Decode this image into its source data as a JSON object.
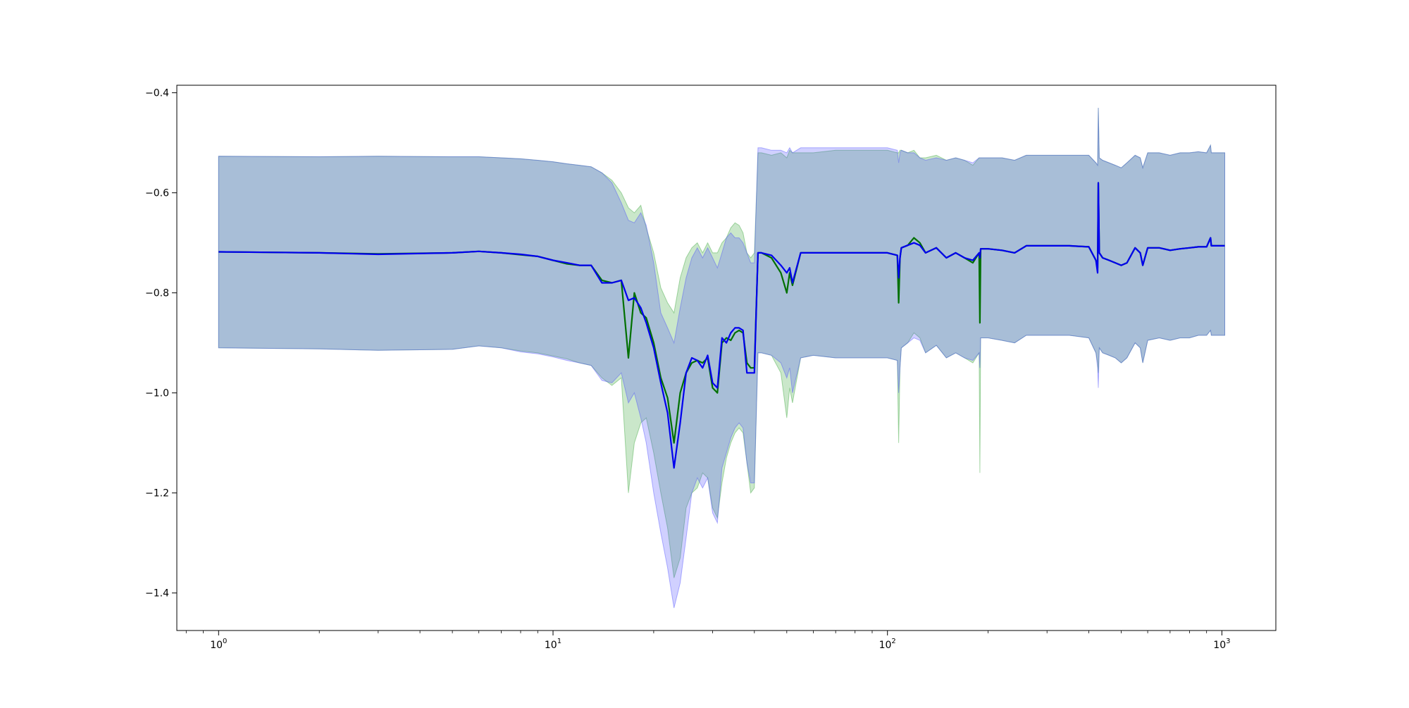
{
  "chart_data": {
    "type": "line",
    "title": "",
    "xlabel": "",
    "ylabel": "",
    "xscale": "log",
    "xlim": [
      0.75,
      1450
    ],
    "ylim": [
      -1.475,
      -0.385
    ],
    "grid": false,
    "legend": "none",
    "x_ticks": [
      {
        "value": 1,
        "base": "10",
        "exp": "0"
      },
      {
        "value": 10,
        "base": "10",
        "exp": "1"
      },
      {
        "value": 100,
        "base": "10",
        "exp": "2"
      },
      {
        "value": 1000,
        "base": "10",
        "exp": "3"
      }
    ],
    "y_ticks": [
      {
        "value": -0.4,
        "label": "−0.4"
      },
      {
        "value": -0.6,
        "label": "−0.6"
      },
      {
        "value": -0.8,
        "label": "−0.8"
      },
      {
        "value": -1.0,
        "label": "−1.0"
      },
      {
        "value": -1.2,
        "label": "−1.2"
      },
      {
        "value": -1.4,
        "label": "−1.4"
      }
    ],
    "series": [
      {
        "color": "#007000",
        "band_color": "#2ca02c",
        "band_opacity": 0.25,
        "x": [
          1,
          2,
          3,
          5,
          6,
          7,
          8,
          9,
          10,
          11,
          12,
          13,
          14,
          15,
          16,
          16.8,
          17.5,
          18.3,
          19,
          20,
          21,
          22,
          23,
          24,
          25,
          26,
          27,
          28,
          29,
          30,
          31,
          32,
          33,
          34,
          35,
          36,
          37,
          38,
          39,
          40,
          41,
          42,
          45,
          48,
          50,
          51,
          52,
          55,
          60,
          70,
          80,
          90,
          100,
          107,
          108,
          109,
          110,
          115,
          120,
          125,
          130,
          140,
          150,
          160,
          170,
          180,
          188,
          189,
          190,
          195,
          200,
          220,
          240,
          260,
          300,
          350,
          400,
          420,
          425,
          427,
          430,
          440,
          460,
          480,
          500,
          520,
          550,
          570,
          580,
          600,
          650,
          700,
          750,
          800,
          850,
          900,
          925,
          930,
          950,
          1000,
          1020
        ],
        "y": [
          -0.718,
          -0.72,
          -0.722,
          -0.72,
          -0.717,
          -0.72,
          -0.724,
          -0.727,
          -0.735,
          -0.742,
          -0.745,
          -0.745,
          -0.775,
          -0.78,
          -0.775,
          -0.93,
          -0.8,
          -0.84,
          -0.85,
          -0.9,
          -0.97,
          -1.01,
          -1.1,
          -1.0,
          -0.96,
          -0.94,
          -0.935,
          -0.94,
          -0.93,
          -0.99,
          -1.0,
          -0.9,
          -0.89,
          -0.895,
          -0.88,
          -0.875,
          -0.88,
          -0.94,
          -0.95,
          -0.95,
          -0.72,
          -0.72,
          -0.73,
          -0.76,
          -0.8,
          -0.76,
          -0.785,
          -0.72,
          -0.72,
          -0.72,
          -0.72,
          -0.72,
          -0.72,
          -0.725,
          -0.82,
          -0.73,
          -0.71,
          -0.705,
          -0.69,
          -0.7,
          -0.72,
          -0.71,
          -0.73,
          -0.72,
          -0.73,
          -0.74,
          -0.72,
          -0.86,
          -0.712,
          -0.712,
          -0.712,
          -0.715,
          -0.72,
          -0.706,
          -0.706,
          -0.706,
          -0.708,
          -0.735,
          -0.75,
          -0.58,
          -0.72,
          -0.73,
          -0.735,
          -0.74,
          -0.745,
          -0.74,
          -0.71,
          -0.72,
          -0.745,
          -0.71,
          -0.71,
          -0.715,
          -0.712,
          -0.71,
          -0.708,
          -0.708,
          -0.69,
          -0.706,
          -0.706,
          -0.706,
          -0.706
        ],
        "upper": [
          -0.527,
          -0.528,
          -0.527,
          -0.528,
          -0.528,
          -0.53,
          -0.532,
          -0.535,
          -0.538,
          -0.542,
          -0.545,
          -0.548,
          -0.56,
          -0.575,
          -0.6,
          -0.63,
          -0.64,
          -0.625,
          -0.67,
          -0.72,
          -0.79,
          -0.82,
          -0.84,
          -0.77,
          -0.73,
          -0.71,
          -0.7,
          -0.72,
          -0.7,
          -0.72,
          -0.72,
          -0.7,
          -0.69,
          -0.67,
          -0.66,
          -0.665,
          -0.68,
          -0.72,
          -0.73,
          -0.72,
          -0.52,
          -0.52,
          -0.525,
          -0.52,
          -0.53,
          -0.515,
          -0.52,
          -0.52,
          -0.52,
          -0.515,
          -0.515,
          -0.515,
          -0.515,
          -0.52,
          -0.52,
          -0.515,
          -0.515,
          -0.52,
          -0.515,
          -0.53,
          -0.53,
          -0.525,
          -0.535,
          -0.53,
          -0.535,
          -0.545,
          -0.53,
          -0.53,
          -0.53,
          -0.53,
          -0.53,
          -0.53,
          -0.535,
          -0.525,
          -0.525,
          -0.525,
          -0.525,
          -0.54,
          -0.545,
          -0.43,
          -0.53,
          -0.535,
          -0.54,
          -0.545,
          -0.55,
          -0.54,
          -0.525,
          -0.53,
          -0.55,
          -0.52,
          -0.52,
          -0.525,
          -0.52,
          -0.52,
          -0.518,
          -0.52,
          -0.505,
          -0.52,
          -0.52,
          -0.52,
          -0.52
        ],
        "lower": [
          -0.91,
          -0.912,
          -0.915,
          -0.913,
          -0.906,
          -0.91,
          -0.916,
          -0.92,
          -0.926,
          -0.932,
          -0.94,
          -0.945,
          -0.97,
          -0.985,
          -0.97,
          -1.2,
          -1.1,
          -1.06,
          -1.05,
          -1.12,
          -1.2,
          -1.27,
          -1.37,
          -1.33,
          -1.23,
          -1.2,
          -1.19,
          -1.16,
          -1.17,
          -1.23,
          -1.25,
          -1.18,
          -1.13,
          -1.1,
          -1.08,
          -1.07,
          -1.08,
          -1.14,
          -1.2,
          -1.19,
          -0.92,
          -0.92,
          -0.925,
          -0.96,
          -1.05,
          -0.99,
          -1.02,
          -0.93,
          -0.925,
          -0.93,
          -0.93,
          -0.93,
          -0.93,
          -0.935,
          -1.1,
          -0.95,
          -0.91,
          -0.9,
          -0.88,
          -0.89,
          -0.92,
          -0.905,
          -0.93,
          -0.92,
          -0.93,
          -0.94,
          -0.92,
          -1.16,
          -0.89,
          -0.89,
          -0.89,
          -0.895,
          -0.9,
          -0.885,
          -0.885,
          -0.885,
          -0.89,
          -0.92,
          -0.94,
          -0.96,
          -0.91,
          -0.92,
          -0.925,
          -0.93,
          -0.94,
          -0.93,
          -0.9,
          -0.91,
          -0.94,
          -0.895,
          -0.89,
          -0.895,
          -0.89,
          -0.89,
          -0.885,
          -0.885,
          -0.875,
          -0.885,
          -0.885,
          -0.885,
          -0.885
        ]
      },
      {
        "color": "#0000ee",
        "band_color": "#4444ff",
        "band_opacity": 0.25,
        "x": [
          1,
          2,
          3,
          5,
          6,
          7,
          8,
          9,
          10,
          11,
          12,
          13,
          14,
          15,
          16,
          16.8,
          17.5,
          18.3,
          19,
          20,
          21,
          22,
          23,
          24,
          25,
          26,
          27,
          28,
          29,
          30,
          31,
          32,
          33,
          34,
          35,
          36,
          37,
          38,
          39,
          40,
          41,
          42,
          45,
          48,
          50,
          51,
          52,
          55,
          60,
          70,
          80,
          90,
          100,
          107,
          108,
          109,
          110,
          115,
          120,
          125,
          130,
          140,
          150,
          160,
          170,
          180,
          188,
          189,
          190,
          195,
          200,
          220,
          240,
          260,
          300,
          350,
          400,
          420,
          425,
          427,
          430,
          440,
          460,
          480,
          500,
          520,
          550,
          570,
          580,
          600,
          650,
          700,
          750,
          800,
          850,
          900,
          925,
          930,
          950,
          1000,
          1020
        ],
        "y": [
          -0.718,
          -0.72,
          -0.723,
          -0.72,
          -0.717,
          -0.72,
          -0.723,
          -0.727,
          -0.735,
          -0.74,
          -0.745,
          -0.745,
          -0.78,
          -0.78,
          -0.775,
          -0.815,
          -0.81,
          -0.83,
          -0.86,
          -0.91,
          -0.98,
          -1.04,
          -1.15,
          -1.06,
          -0.96,
          -0.93,
          -0.935,
          -0.95,
          -0.925,
          -0.98,
          -0.99,
          -0.89,
          -0.9,
          -0.88,
          -0.87,
          -0.87,
          -0.875,
          -0.96,
          -0.96,
          -0.96,
          -0.72,
          -0.72,
          -0.725,
          -0.745,
          -0.76,
          -0.75,
          -0.78,
          -0.72,
          -0.72,
          -0.72,
          -0.72,
          -0.72,
          -0.72,
          -0.725,
          -0.77,
          -0.73,
          -0.71,
          -0.705,
          -0.7,
          -0.705,
          -0.72,
          -0.71,
          -0.73,
          -0.72,
          -0.73,
          -0.735,
          -0.72,
          -0.73,
          -0.712,
          -0.712,
          -0.712,
          -0.715,
          -0.72,
          -0.706,
          -0.706,
          -0.706,
          -0.708,
          -0.735,
          -0.76,
          -0.58,
          -0.72,
          -0.73,
          -0.735,
          -0.74,
          -0.745,
          -0.74,
          -0.71,
          -0.72,
          -0.745,
          -0.71,
          -0.71,
          -0.715,
          -0.712,
          -0.71,
          -0.708,
          -0.708,
          -0.69,
          -0.706,
          -0.706,
          -0.706,
          -0.706
        ],
        "upper": [
          -0.527,
          -0.528,
          -0.527,
          -0.528,
          -0.528,
          -0.53,
          -0.532,
          -0.535,
          -0.538,
          -0.542,
          -0.545,
          -0.548,
          -0.56,
          -0.58,
          -0.62,
          -0.655,
          -0.66,
          -0.64,
          -0.665,
          -0.74,
          -0.84,
          -0.87,
          -0.9,
          -0.83,
          -0.77,
          -0.73,
          -0.71,
          -0.73,
          -0.71,
          -0.73,
          -0.75,
          -0.72,
          -0.69,
          -0.68,
          -0.69,
          -0.69,
          -0.7,
          -0.72,
          -0.74,
          -0.74,
          -0.51,
          -0.51,
          -0.515,
          -0.515,
          -0.52,
          -0.51,
          -0.52,
          -0.51,
          -0.51,
          -0.51,
          -0.51,
          -0.51,
          -0.51,
          -0.515,
          -0.54,
          -0.52,
          -0.515,
          -0.52,
          -0.52,
          -0.53,
          -0.535,
          -0.53,
          -0.535,
          -0.53,
          -0.535,
          -0.54,
          -0.53,
          -0.53,
          -0.53,
          -0.53,
          -0.53,
          -0.53,
          -0.535,
          -0.525,
          -0.525,
          -0.525,
          -0.525,
          -0.54,
          -0.545,
          -0.43,
          -0.53,
          -0.535,
          -0.54,
          -0.545,
          -0.55,
          -0.54,
          -0.525,
          -0.53,
          -0.55,
          -0.52,
          -0.52,
          -0.525,
          -0.52,
          -0.52,
          -0.518,
          -0.52,
          -0.505,
          -0.52,
          -0.52,
          -0.52,
          -0.52
        ],
        "lower": [
          -0.91,
          -0.912,
          -0.915,
          -0.913,
          -0.906,
          -0.91,
          -0.918,
          -0.922,
          -0.928,
          -0.935,
          -0.94,
          -0.945,
          -0.975,
          -0.98,
          -0.96,
          -1.02,
          -1.0,
          -1.05,
          -1.1,
          -1.2,
          -1.28,
          -1.35,
          -1.43,
          -1.38,
          -1.29,
          -1.2,
          -1.17,
          -1.19,
          -1.17,
          -1.24,
          -1.26,
          -1.15,
          -1.12,
          -1.09,
          -1.07,
          -1.06,
          -1.07,
          -1.14,
          -1.18,
          -1.18,
          -0.92,
          -0.92,
          -0.925,
          -0.94,
          -0.97,
          -0.95,
          -1.0,
          -0.93,
          -0.925,
          -0.93,
          -0.93,
          -0.93,
          -0.93,
          -0.935,
          -1.0,
          -0.95,
          -0.91,
          -0.9,
          -0.89,
          -0.895,
          -0.92,
          -0.905,
          -0.93,
          -0.92,
          -0.93,
          -0.935,
          -0.92,
          -0.95,
          -0.89,
          -0.89,
          -0.89,
          -0.895,
          -0.9,
          -0.885,
          -0.885,
          -0.885,
          -0.89,
          -0.92,
          -0.95,
          -0.99,
          -0.91,
          -0.92,
          -0.925,
          -0.93,
          -0.94,
          -0.93,
          -0.9,
          -0.91,
          -0.94,
          -0.895,
          -0.89,
          -0.895,
          -0.89,
          -0.89,
          -0.885,
          -0.885,
          -0.875,
          -0.885,
          -0.885,
          -0.885,
          -0.885
        ]
      }
    ]
  }
}
